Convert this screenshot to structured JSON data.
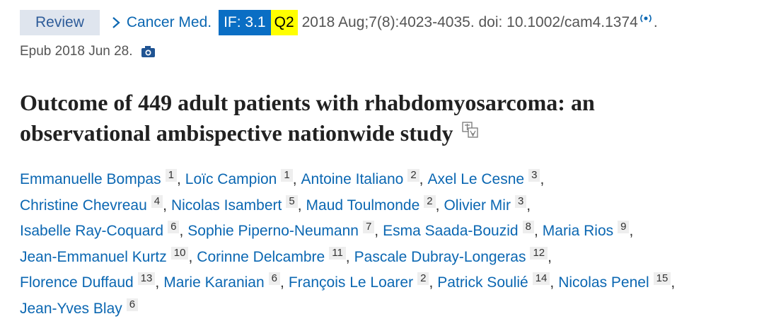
{
  "header": {
    "badge": "Review",
    "journal": "Cancer Med.",
    "impact_factor": "IF: 3.1",
    "quartile": "Q2",
    "citation": "2018 Aug;7(8):4023-4035. doi: 10.1002/cam4.1374",
    "citation_end": ".",
    "epub": "Epub 2018 Jun 28."
  },
  "title": [
    "Outcome of 449 adult patients with rhabdomyosarcoma: an",
    "observational ambispective nationwide study"
  ],
  "author_separator": ",",
  "author_lines": [
    [
      {
        "name": "Emmanuelle Bompas",
        "affiliation": 1
      },
      {
        "name": "Loïc Campion",
        "affiliation": 1
      },
      {
        "name": "Antoine Italiano",
        "affiliation": 2
      },
      {
        "name": "Axel Le Cesne",
        "affiliation": 3
      }
    ],
    [
      {
        "name": "Christine Chevreau",
        "affiliation": 4
      },
      {
        "name": "Nicolas Isambert",
        "affiliation": 5
      },
      {
        "name": "Maud Toulmonde",
        "affiliation": 2
      },
      {
        "name": "Olivier Mir",
        "affiliation": 3
      }
    ],
    [
      {
        "name": "Isabelle Ray-Coquard",
        "affiliation": 6
      },
      {
        "name": "Sophie Piperno-Neumann",
        "affiliation": 7
      },
      {
        "name": "Esma Saada-Bouzid",
        "affiliation": 8
      },
      {
        "name": "Maria Rios",
        "affiliation": 9
      }
    ],
    [
      {
        "name": "Jean-Emmanuel Kurtz",
        "affiliation": 10
      },
      {
        "name": "Corinne Delcambre",
        "affiliation": 11
      },
      {
        "name": "Pascale Dubray-Longeras",
        "affiliation": 12
      }
    ],
    [
      {
        "name": "Florence Duffaud",
        "affiliation": 13
      },
      {
        "name": "Marie Karanian",
        "affiliation": 6
      },
      {
        "name": "François Le Loarer",
        "affiliation": 2
      },
      {
        "name": "Patrick Soulié",
        "affiliation": 14
      },
      {
        "name": "Nicolas Penel",
        "affiliation": 15
      }
    ],
    [
      {
        "name": "Jean-Yves Blay",
        "affiliation": 6
      }
    ]
  ]
}
